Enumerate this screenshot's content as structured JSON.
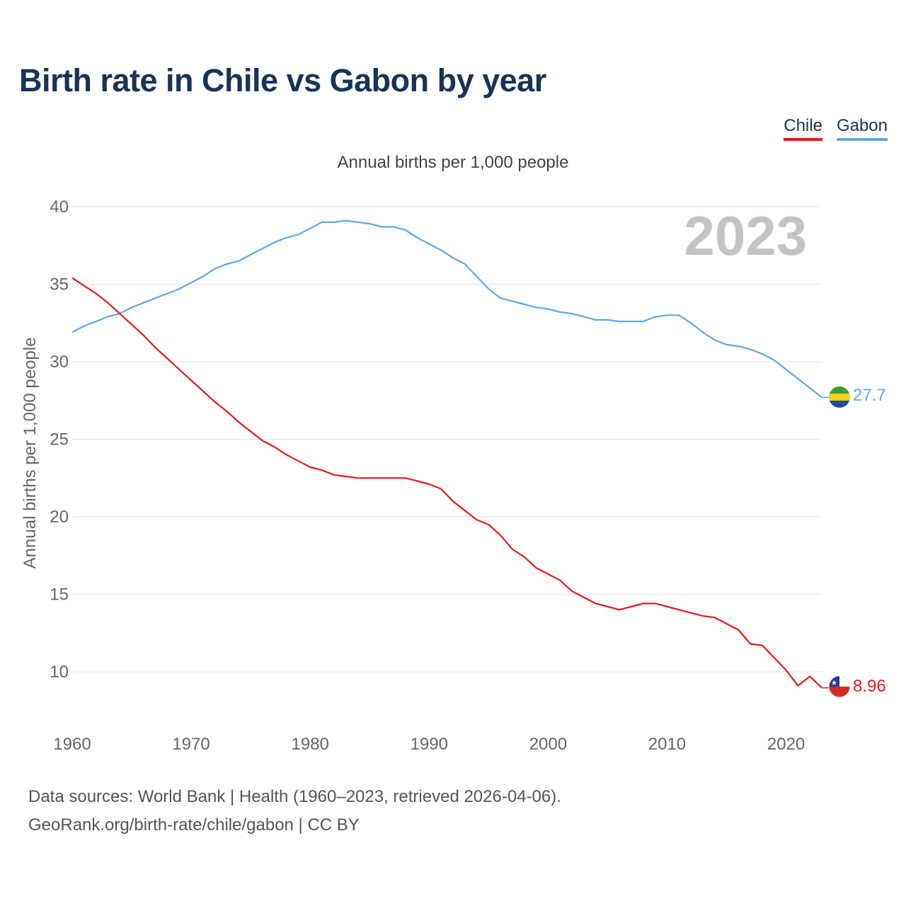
{
  "header": {
    "title": "Birth rate in Chile vs Gabon by year",
    "subtitle": "Annual births per 1,000 people"
  },
  "legend": [
    {
      "label": "Chile",
      "color": "#e8191b"
    },
    {
      "label": "Gabon",
      "color": "#61a8e6"
    }
  ],
  "footer": {
    "source": "Data sources: World Bank | Health (1960–2023, retrieved 2026-04-06).",
    "credit": "GeoRank.org/birth-rate/chile/gabon | CC BY"
  },
  "chart_data": {
    "type": "line",
    "title": "Birth rate in Chile vs Gabon by year",
    "ylabel": "Annual births per 1,000 people",
    "xlabel": "",
    "year_label": "2023",
    "xlim": [
      1960,
      2023
    ],
    "ylim": [
      7,
      40
    ],
    "xticks": [
      1960,
      1970,
      1980,
      1990,
      2000,
      2010,
      2020
    ],
    "yticks": [
      10,
      15,
      20,
      25,
      30,
      35,
      40
    ],
    "grid": true,
    "legend_position": "top-right",
    "x": [
      1960,
      1961,
      1962,
      1963,
      1964,
      1965,
      1966,
      1967,
      1968,
      1969,
      1970,
      1971,
      1972,
      1973,
      1974,
      1975,
      1976,
      1977,
      1978,
      1979,
      1980,
      1981,
      1982,
      1983,
      1984,
      1985,
      1986,
      1987,
      1988,
      1989,
      1990,
      1991,
      1992,
      1993,
      1994,
      1995,
      1996,
      1997,
      1998,
      1999,
      2000,
      2001,
      2002,
      2003,
      2004,
      2005,
      2006,
      2007,
      2008,
      2009,
      2010,
      2011,
      2012,
      2013,
      2014,
      2015,
      2016,
      2017,
      2018,
      2019,
      2020,
      2021,
      2022,
      2023
    ],
    "series": [
      {
        "name": "Chile",
        "color": "#e8191b",
        "end_label": "8.96",
        "flag": "chile-flag-icon",
        "values": [
          35.4,
          34.9,
          34.4,
          33.8,
          33.1,
          32.4,
          31.7,
          30.9,
          30.2,
          29.5,
          28.8,
          28.1,
          27.4,
          26.8,
          26.1,
          25.5,
          24.9,
          24.5,
          24.0,
          23.6,
          23.2,
          23.0,
          22.7,
          22.6,
          22.5,
          22.5,
          22.5,
          22.5,
          22.5,
          22.3,
          22.1,
          21.8,
          21.0,
          20.4,
          19.8,
          19.5,
          18.8,
          17.9,
          17.4,
          16.7,
          16.3,
          15.9,
          15.2,
          14.8,
          14.4,
          14.2,
          14.0,
          14.2,
          14.4,
          14.4,
          14.2,
          14.0,
          13.8,
          13.6,
          13.5,
          13.1,
          12.7,
          11.8,
          11.7,
          10.9,
          10.1,
          9.1,
          9.7,
          8.96
        ]
      },
      {
        "name": "Gabon",
        "color": "#61a8e6",
        "end_label": "27.7",
        "flag": "gabon-flag-icon",
        "values": [
          31.9,
          32.3,
          32.6,
          32.9,
          33.1,
          33.5,
          33.8,
          34.1,
          34.4,
          34.7,
          35.1,
          35.5,
          36.0,
          36.3,
          36.5,
          36.9,
          37.3,
          37.7,
          38.0,
          38.2,
          38.6,
          39.0,
          39.0,
          39.1,
          39.0,
          38.9,
          38.7,
          38.7,
          38.5,
          38.0,
          37.6,
          37.2,
          36.7,
          36.3,
          35.5,
          34.7,
          34.1,
          33.9,
          33.7,
          33.5,
          33.4,
          33.2,
          33.1,
          32.9,
          32.7,
          32.7,
          32.6,
          32.6,
          32.6,
          32.9,
          33.0,
          33.0,
          32.5,
          31.9,
          31.4,
          31.1,
          31.0,
          30.8,
          30.5,
          30.1,
          29.5,
          28.9,
          28.3,
          27.7
        ]
      }
    ]
  }
}
